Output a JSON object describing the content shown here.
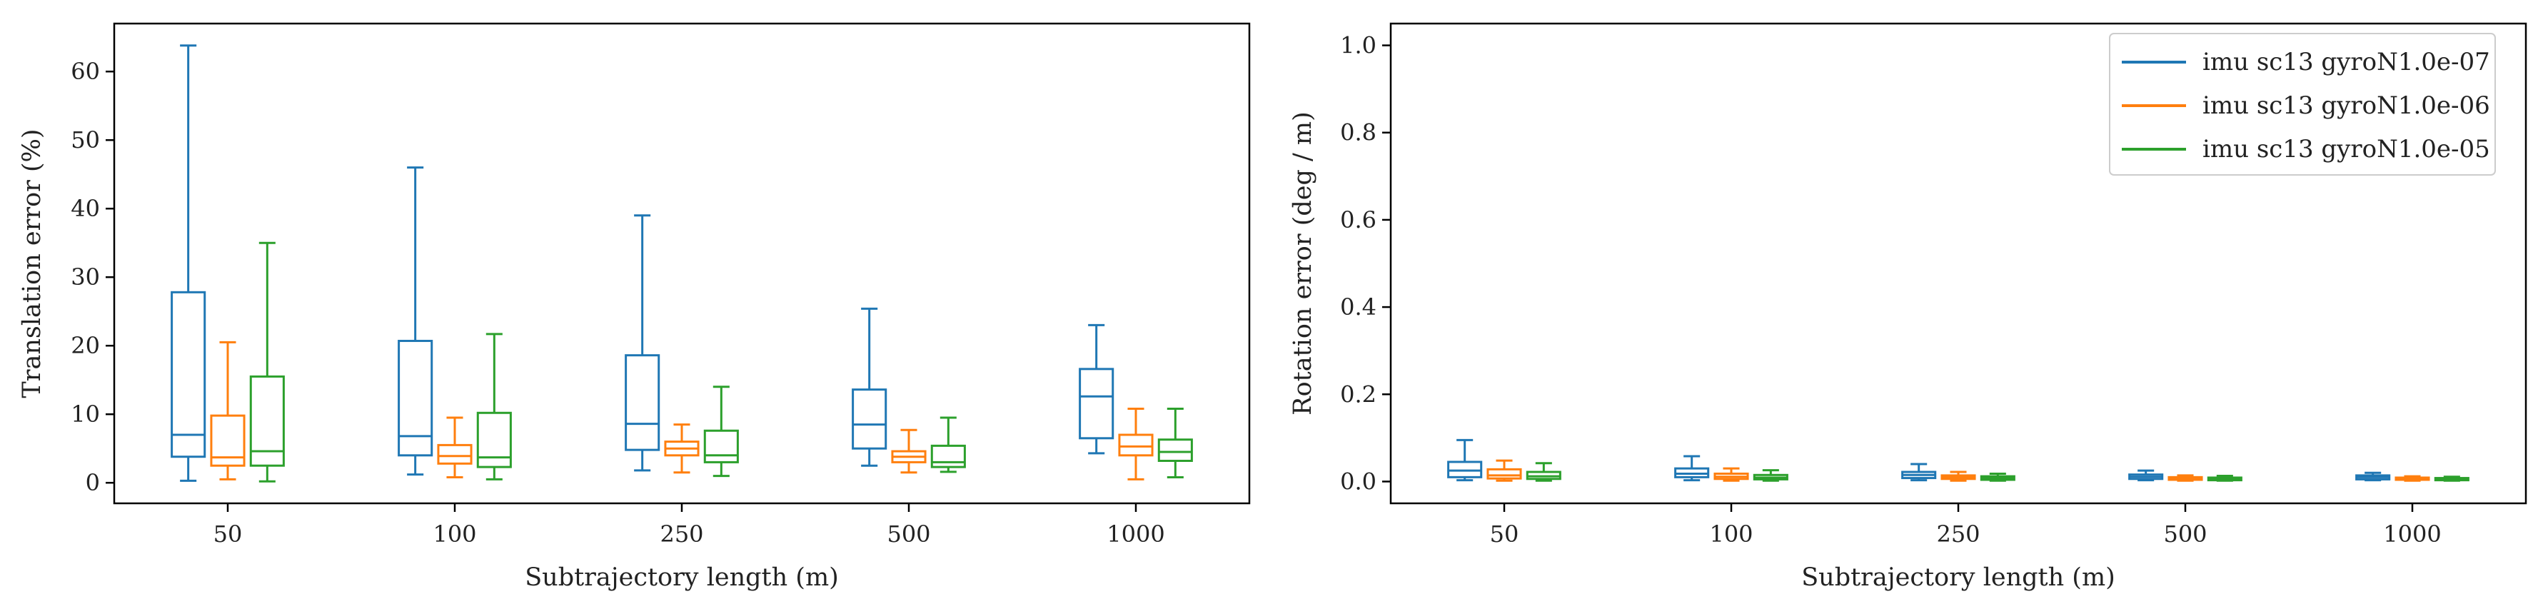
{
  "chart_data": [
    {
      "type": "box",
      "categories": [
        "50",
        "100",
        "250",
        "500",
        "1000"
      ],
      "xlabel": "Subtrajectory length (m)",
      "ylabel": "Translation error (%)",
      "ylim": [
        -3,
        67
      ],
      "yticks": [
        0,
        10,
        20,
        30,
        40,
        50,
        60
      ],
      "grid": false,
      "series": [
        {
          "name": "imu sc13 gyroN1.0e-07",
          "color": "#1f77b4",
          "boxes": [
            {
              "whislo": 0.3,
              "q1": 3.8,
              "med": 7.0,
              "q3": 27.8,
              "whishi": 63.8
            },
            {
              "whislo": 1.2,
              "q1": 4.0,
              "med": 6.8,
              "q3": 20.7,
              "whishi": 46.0
            },
            {
              "whislo": 1.8,
              "q1": 4.8,
              "med": 8.6,
              "q3": 18.6,
              "whishi": 39.0
            },
            {
              "whislo": 2.5,
              "q1": 5.0,
              "med": 8.5,
              "q3": 13.6,
              "whishi": 25.4
            },
            {
              "whislo": 4.3,
              "q1": 6.5,
              "med": 12.6,
              "q3": 16.6,
              "whishi": 23.0
            }
          ]
        },
        {
          "name": "imu sc13 gyroN1.0e-06",
          "color": "#ff7f0e",
          "boxes": [
            {
              "whislo": 0.5,
              "q1": 2.5,
              "med": 3.7,
              "q3": 9.8,
              "whishi": 20.5
            },
            {
              "whislo": 0.8,
              "q1": 2.8,
              "med": 3.9,
              "q3": 5.5,
              "whishi": 9.5
            },
            {
              "whislo": 1.5,
              "q1": 4.0,
              "med": 5.0,
              "q3": 6.0,
              "whishi": 8.5
            },
            {
              "whislo": 1.5,
              "q1": 3.0,
              "med": 3.8,
              "q3": 4.6,
              "whishi": 7.7
            },
            {
              "whislo": 0.5,
              "q1": 4.0,
              "med": 5.3,
              "q3": 7.0,
              "whishi": 10.8
            }
          ]
        },
        {
          "name": "imu sc13 gyroN1.0e-05",
          "color": "#2ca02c",
          "boxes": [
            {
              "whislo": 0.2,
              "q1": 2.5,
              "med": 4.6,
              "q3": 15.5,
              "whishi": 35.0
            },
            {
              "whislo": 0.5,
              "q1": 2.3,
              "med": 3.7,
              "q3": 10.2,
              "whishi": 21.7
            },
            {
              "whislo": 1.0,
              "q1": 3.0,
              "med": 4.0,
              "q3": 7.6,
              "whishi": 14.0
            },
            {
              "whislo": 1.6,
              "q1": 2.3,
              "med": 3.0,
              "q3": 5.4,
              "whishi": 9.5
            },
            {
              "whislo": 0.8,
              "q1": 3.2,
              "med": 4.5,
              "q3": 6.3,
              "whishi": 10.8
            }
          ]
        }
      ]
    },
    {
      "type": "box",
      "categories": [
        "50",
        "100",
        "250",
        "500",
        "1000"
      ],
      "xlabel": "Subtrajectory length (m)",
      "ylabel": "Rotation error (deg / m)",
      "ylim": [
        -0.05,
        1.05
      ],
      "yticks": [
        "0.0",
        "0.2",
        "0.4",
        "0.6",
        "0.8",
        "1.0"
      ],
      "grid": false,
      "legend": {
        "placement": "top-right",
        "entries": [
          "imu sc13 gyroN1.0e-07",
          "imu sc13 gyroN1.0e-06",
          "imu sc13 gyroN1.0e-05"
        ]
      },
      "series": [
        {
          "name": "imu sc13 gyroN1.0e-07",
          "color": "#1f77b4",
          "boxes": [
            {
              "whislo": 0.003,
              "q1": 0.01,
              "med": 0.025,
              "q3": 0.045,
              "whishi": 0.095
            },
            {
              "whislo": 0.003,
              "q1": 0.01,
              "med": 0.018,
              "q3": 0.03,
              "whishi": 0.058
            },
            {
              "whislo": 0.003,
              "q1": 0.008,
              "med": 0.015,
              "q3": 0.022,
              "whishi": 0.04
            },
            {
              "whislo": 0.003,
              "q1": 0.006,
              "med": 0.011,
              "q3": 0.016,
              "whishi": 0.025
            },
            {
              "whislo": 0.003,
              "q1": 0.005,
              "med": 0.01,
              "q3": 0.014,
              "whishi": 0.02
            }
          ]
        },
        {
          "name": "imu sc13 gyroN1.0e-06",
          "color": "#ff7f0e",
          "boxes": [
            {
              "whislo": 0.002,
              "q1": 0.007,
              "med": 0.014,
              "q3": 0.028,
              "whishi": 0.048
            },
            {
              "whislo": 0.002,
              "q1": 0.006,
              "med": 0.011,
              "q3": 0.018,
              "whishi": 0.03
            },
            {
              "whislo": 0.002,
              "q1": 0.006,
              "med": 0.01,
              "q3": 0.014,
              "whishi": 0.022
            },
            {
              "whislo": 0.002,
              "q1": 0.004,
              "med": 0.007,
              "q3": 0.01,
              "whishi": 0.014
            },
            {
              "whislo": 0.002,
              "q1": 0.004,
              "med": 0.006,
              "q3": 0.009,
              "whishi": 0.012
            }
          ]
        },
        {
          "name": "imu sc13 gyroN1.0e-05",
          "color": "#2ca02c",
          "boxes": [
            {
              "whislo": 0.002,
              "q1": 0.006,
              "med": 0.012,
              "q3": 0.022,
              "whishi": 0.042
            },
            {
              "whislo": 0.002,
              "q1": 0.005,
              "med": 0.009,
              "q3": 0.015,
              "whishi": 0.026
            },
            {
              "whislo": 0.002,
              "q1": 0.004,
              "med": 0.008,
              "q3": 0.012,
              "whishi": 0.018
            },
            {
              "whislo": 0.002,
              "q1": 0.003,
              "med": 0.006,
              "q3": 0.009,
              "whishi": 0.013
            },
            {
              "whislo": 0.002,
              "q1": 0.003,
              "med": 0.005,
              "q3": 0.008,
              "whishi": 0.011
            }
          ]
        }
      ]
    }
  ]
}
